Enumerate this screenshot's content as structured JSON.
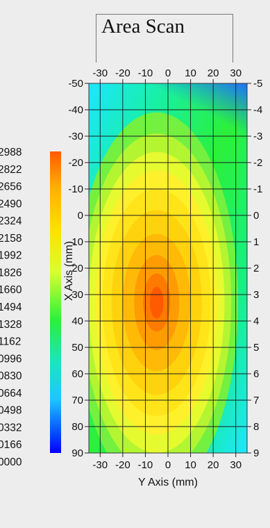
{
  "chart_data": {
    "type": "heatmap",
    "title": "Area Scan",
    "xlabel": "Y Axis (mm)",
    "ylabel": "X Axis (mm)",
    "x_ticks": [
      -30,
      -20,
      -10,
      0,
      10,
      20,
      30
    ],
    "y_ticks": [
      -50,
      -40,
      -30,
      -20,
      -10,
      0,
      10,
      20,
      30,
      40,
      50,
      60,
      70,
      80,
      90
    ],
    "right_y_tick_labels": [
      "-5",
      "-4",
      "-3",
      "-2",
      "-1",
      "0",
      "1",
      "2",
      "3",
      "4",
      "5",
      "6",
      "7",
      "8",
      "9"
    ],
    "xlim": [
      -35,
      35
    ],
    "ylim": [
      -50,
      90
    ],
    "grid": true,
    "colorbar": {
      "labels": [
        "2988",
        "2822",
        "2656",
        "2490",
        "2324",
        "2158",
        "1992",
        "1826",
        "1660",
        "1494",
        "1328",
        "1162",
        "0996",
        "0830",
        "0664",
        "0498",
        "0332",
        "0166",
        "0000"
      ],
      "values": [
        0.2988,
        0.2822,
        0.2656,
        0.249,
        0.2324,
        0.2158,
        0.1992,
        0.1826,
        0.166,
        0.1494,
        0.1328,
        0.1162,
        0.0996,
        0.083,
        0.0664,
        0.0498,
        0.0332,
        0.0166,
        0.0
      ],
      "range": [
        0.0,
        0.2988
      ],
      "colors": [
        "#ff5a00",
        "#ffd000",
        "#f6ff3c",
        "#15ee4a",
        "#1ce6ff",
        "#0000ff"
      ]
    },
    "peak": {
      "x": -5,
      "y": 33,
      "value": 0.2988
    }
  }
}
